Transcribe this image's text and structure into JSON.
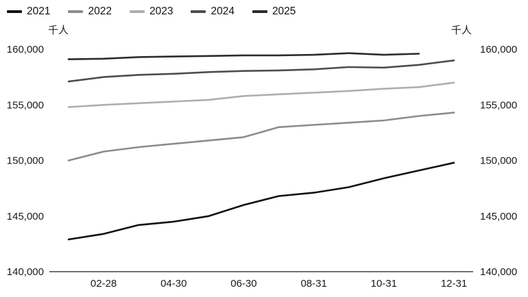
{
  "chart_data": {
    "type": "line",
    "title": "",
    "unit_label_left": "千人",
    "unit_label_right": "千人",
    "ylim": [
      140000,
      160000
    ],
    "yticks": [
      140000,
      145000,
      150000,
      155000,
      160000
    ],
    "ytick_labels": [
      "140,000",
      "145,000",
      "150,000",
      "155,000",
      "160,000"
    ],
    "xtick_months": [
      2,
      4,
      6,
      8,
      10,
      12
    ],
    "xtick_labels": [
      "02-28",
      "04-30",
      "06-30",
      "08-31",
      "10-31",
      "12-31"
    ],
    "grid": false,
    "legend_position": "top-left",
    "series": [
      {
        "name": "2021",
        "color": "#111111",
        "values": [
          142900,
          143400,
          144200,
          144500,
          145000,
          146000,
          146800,
          147100,
          147600,
          148400,
          149100,
          149800
        ]
      },
      {
        "name": "2022",
        "color": "#8c8c8c",
        "values": [
          150000,
          150800,
          151200,
          151500,
          151800,
          152100,
          153000,
          153200,
          153400,
          153600,
          154000,
          154300
        ]
      },
      {
        "name": "2023",
        "color": "#aeaeae",
        "values": [
          154800,
          155000,
          155150,
          155300,
          155450,
          155800,
          155950,
          156100,
          156250,
          156450,
          156600,
          157000
        ]
      },
      {
        "name": "2024",
        "color": "#4d4d4d",
        "values": [
          157100,
          157500,
          157700,
          157800,
          157950,
          158050,
          158100,
          158200,
          158400,
          158350,
          158600,
          159000
        ]
      },
      {
        "name": "2025",
        "color": "#2b2b2b",
        "values": [
          159100,
          159150,
          159300,
          159350,
          159400,
          159450,
          159450,
          159500,
          159650,
          159500,
          159600
        ]
      }
    ]
  }
}
